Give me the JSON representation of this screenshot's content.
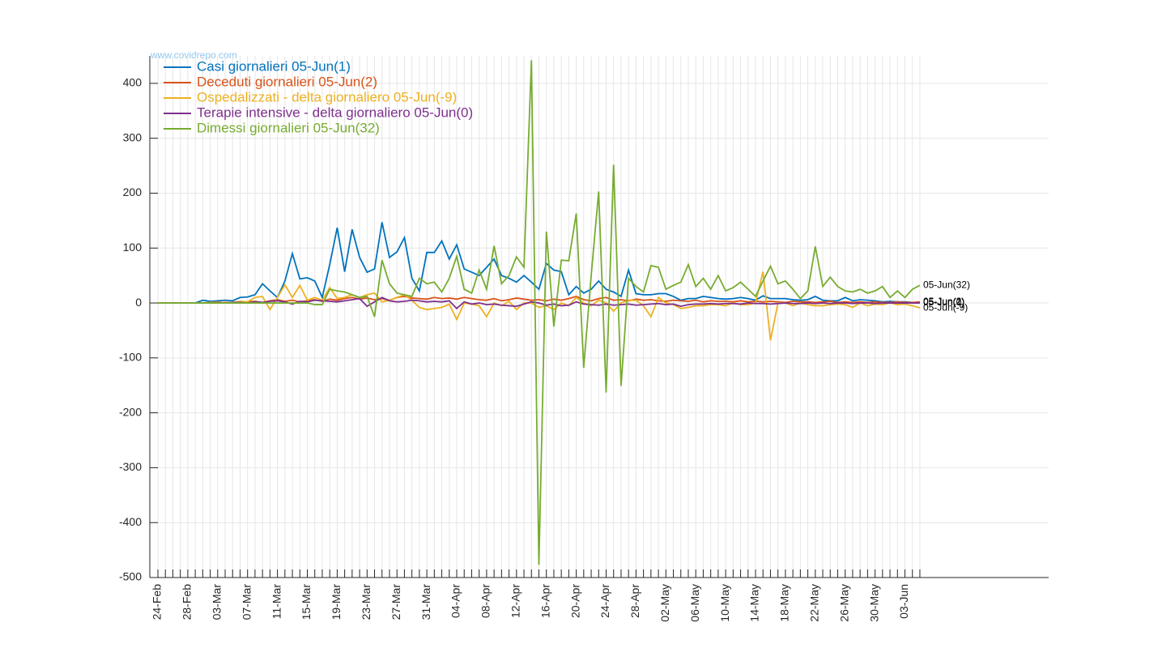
{
  "chart_data": {
    "type": "line",
    "watermark": "www.covidrepo.com",
    "categories": [
      "24-Feb",
      null,
      null,
      null,
      "28-Feb",
      null,
      null,
      null,
      "03-Mar",
      null,
      null,
      null,
      "07-Mar",
      null,
      null,
      null,
      "11-Mar",
      null,
      null,
      null,
      "15-Mar",
      null,
      null,
      null,
      "19-Mar",
      null,
      null,
      null,
      "23-Mar",
      null,
      null,
      null,
      "27-Mar",
      null,
      null,
      null,
      "31-Mar",
      null,
      null,
      null,
      "04-Apr",
      null,
      null,
      null,
      "08-Apr",
      null,
      null,
      null,
      "12-Apr",
      null,
      null,
      null,
      "16-Apr",
      null,
      null,
      null,
      "20-Apr",
      null,
      null,
      null,
      "24-Apr",
      null,
      null,
      null,
      "28-Apr",
      null,
      null,
      null,
      "02-May",
      null,
      null,
      null,
      "06-May",
      null,
      null,
      null,
      "10-May",
      null,
      null,
      null,
      "14-May",
      null,
      null,
      null,
      "18-May",
      null,
      null,
      null,
      "22-May",
      null,
      null,
      null,
      "26-May",
      null,
      null,
      null,
      "30-May",
      null,
      null,
      null,
      "03-Jun",
      null,
      null
    ],
    "ylim": [
      -500,
      450
    ],
    "yticks": [
      -500,
      -400,
      -300,
      -200,
      -100,
      0,
      100,
      200,
      300,
      400
    ],
    "grid": true,
    "legend": "upper-left",
    "series": [
      {
        "name": "Casi giornalieri 05-Jun(1)",
        "end_label": "05-Jun(1)",
        "color": "#0072BD",
        "values": [
          0,
          0,
          0,
          0,
          0,
          0,
          5,
          3,
          4,
          5,
          4,
          10,
          11,
          15,
          35,
          22,
          10,
          40,
          90,
          44,
          46,
          40,
          10,
          70,
          137,
          57,
          134,
          83,
          56,
          62,
          147,
          83,
          93,
          119,
          45,
          22,
          92,
          92,
          113,
          80,
          106,
          62,
          56,
          50,
          65,
          80,
          50,
          45,
          38,
          50,
          38,
          25,
          72,
          60,
          57,
          15,
          30,
          18,
          25,
          40,
          25,
          20,
          12,
          60,
          17,
          15,
          15,
          17,
          17,
          12,
          5,
          8,
          8,
          12,
          10,
          8,
          7,
          8,
          10,
          8,
          5,
          13,
          8,
          8,
          8,
          6,
          5,
          6,
          12,
          5,
          4,
          4,
          10,
          4,
          6,
          5,
          4,
          2,
          3,
          2,
          2,
          1,
          1
        ]
      },
      {
        "name": "Deceduti giornalieri 05-Jun(2)",
        "end_label": "05-Jun(2)",
        "color": "#D95319",
        "values": [
          0,
          0,
          0,
          0,
          0,
          0,
          0,
          1,
          0,
          1,
          1,
          2,
          2,
          3,
          1,
          4,
          6,
          3,
          5,
          2,
          4,
          6,
          3,
          7,
          5,
          8,
          10,
          7,
          9,
          6,
          8,
          5,
          10,
          12,
          9,
          8,
          7,
          10,
          8,
          9,
          7,
          10,
          8,
          6,
          5,
          8,
          4,
          6,
          9,
          7,
          5,
          6,
          4,
          7,
          5,
          8,
          12,
          6,
          4,
          8,
          10,
          5,
          6,
          4,
          7,
          5,
          6,
          4,
          3,
          5,
          4,
          3,
          5,
          2,
          4,
          3,
          3,
          2,
          4,
          2,
          3,
          2,
          3,
          2,
          1,
          3,
          2,
          2,
          1,
          2,
          3,
          1,
          2,
          1,
          2,
          1,
          2,
          1,
          1,
          2,
          1,
          1,
          2
        ]
      },
      {
        "name": "Ospedalizzati - delta giornaliero 05-Jun(-9)",
        "end_label": "05-Jun(-9)",
        "color": "#EDB120",
        "values": [
          0,
          0,
          0,
          0,
          0,
          0,
          0,
          1,
          2,
          0,
          1,
          3,
          2,
          10,
          12,
          -12,
          10,
          33,
          10,
          32,
          5,
          10,
          5,
          28,
          8,
          10,
          15,
          10,
          15,
          18,
          2,
          5,
          10,
          15,
          5,
          -8,
          -12,
          -10,
          -8,
          -2,
          -30,
          0,
          -2,
          -5,
          -25,
          0,
          -5,
          3,
          -12,
          0,
          0,
          -8,
          -5,
          -12,
          0,
          -5,
          10,
          0,
          -5,
          5,
          0,
          -15,
          0,
          5,
          5,
          -5,
          -25,
          10,
          0,
          -3,
          -10,
          -8,
          -5,
          -5,
          -3,
          -3,
          -5,
          0,
          -3,
          -3,
          0,
          57,
          -68,
          0,
          0,
          -5,
          0,
          -3,
          -5,
          -5,
          -3,
          -2,
          -3,
          -8,
          0,
          -5,
          -2,
          -3,
          0,
          -3,
          -2,
          -5,
          -9
        ]
      },
      {
        "name": "Terapie intensive - delta giornaliero 05-Jun(0)",
        "end_label": "05-Jun(0)",
        "color": "#7E2F8E",
        "values": [
          0,
          0,
          0,
          0,
          0,
          0,
          0,
          0,
          1,
          0,
          1,
          1,
          0,
          2,
          1,
          3,
          4,
          2,
          -2,
          3,
          2,
          5,
          4,
          3,
          2,
          4,
          6,
          8,
          -6,
          2,
          10,
          4,
          2,
          3,
          5,
          4,
          2,
          3,
          2,
          4,
          -10,
          2,
          -2,
          0,
          -3,
          -2,
          -4,
          -5,
          -6,
          -2,
          2,
          0,
          -4,
          -2,
          -5,
          -4,
          2,
          -2,
          -3,
          -4,
          -2,
          -4,
          -3,
          -2,
          -4,
          -3,
          -2,
          -1,
          -3,
          -2,
          -6,
          -3,
          -2,
          -2,
          -1,
          -2,
          -1,
          -1,
          -2,
          0,
          -1,
          -1,
          -2,
          -1,
          0,
          -1,
          -1,
          0,
          -1,
          0,
          -1,
          0,
          0,
          -1,
          0,
          0,
          -1,
          0,
          0,
          0,
          0,
          0,
          0
        ]
      },
      {
        "name": "Dimessi giornalieri 05-Jun(32)",
        "end_label": "05-Jun(32)",
        "color": "#77AC30",
        "values": [
          0,
          0,
          0,
          0,
          0,
          0,
          0,
          0,
          0,
          0,
          0,
          0,
          0,
          0,
          0,
          0,
          0,
          0,
          0,
          0,
          0,
          -3,
          -3,
          25,
          22,
          20,
          15,
          10,
          12,
          -25,
          78,
          35,
          18,
          15,
          12,
          45,
          35,
          38,
          20,
          45,
          85,
          25,
          18,
          60,
          25,
          104,
          35,
          50,
          84,
          65,
          442,
          -477,
          130,
          -43,
          78,
          77,
          163,
          -118,
          50,
          203,
          -163,
          252,
          -151,
          45,
          30,
          20,
          68,
          65,
          25,
          32,
          38,
          70,
          30,
          45,
          25,
          50,
          22,
          28,
          38,
          25,
          12,
          40,
          67,
          35,
          40,
          25,
          8,
          22,
          103,
          30,
          47,
          30,
          22,
          20,
          25,
          18,
          22,
          30,
          10,
          22,
          10,
          25,
          32
        ]
      }
    ]
  }
}
